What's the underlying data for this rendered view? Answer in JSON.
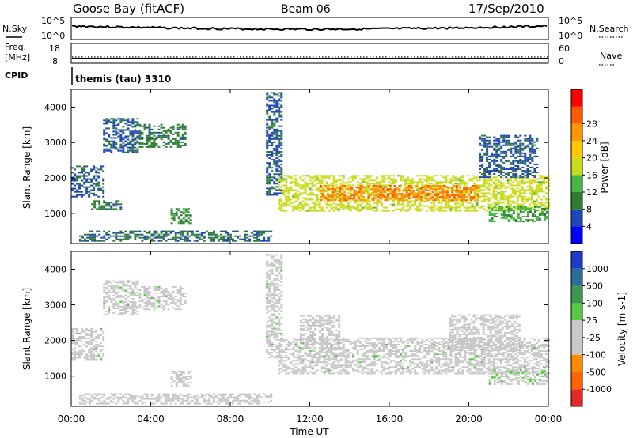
{
  "header": {
    "title": "Goose Bay (fitACF)",
    "beam": "Beam 06",
    "date": "17/Sep/2010"
  },
  "aux_panels": {
    "nsky_label": "N.Sky",
    "nsearch_label": "N.Search",
    "noise_ticks_left": [
      "10^5",
      "10^0"
    ],
    "noise_ticks_right": [
      "10^5",
      "10^0"
    ],
    "freq_label_1": "Freq.",
    "freq_label_2": "[MHz]",
    "freq_ticks": [
      "18",
      "8"
    ],
    "nave_label": "Nave",
    "nave_ticks": [
      "60",
      "0"
    ],
    "cpid_label": "CPID",
    "cpid_value": "themis (tau) 3310"
  },
  "x_axis": {
    "label": "Time UT",
    "ticks": [
      "00:00",
      "04:00",
      "08:00",
      "12:00",
      "16:00",
      "20:00",
      "00:00"
    ]
  },
  "colors": {
    "power": [
      "#0000ff",
      "#1e46b4",
      "#2e7d32",
      "#46b446",
      "#c8dc1e",
      "#ffc800",
      "#ff9600",
      "#ff5a00",
      "#ff0000"
    ],
    "velocity": [
      "#1e3cc8",
      "#2a6e96",
      "#3c9650",
      "#5ac846",
      "#c8c8c8",
      "#c8c8c8",
      "#ff8c00",
      "#ff6400",
      "#e62828"
    ]
  },
  "chart_data": [
    {
      "type": "heatmap",
      "name": "power",
      "xlabel": "Time UT",
      "ylabel": "Slant Range [km]",
      "xlim": [
        0,
        24
      ],
      "ylim": [
        150,
        4500
      ],
      "yticks": [
        1000,
        2000,
        3000,
        4000
      ],
      "colorbar_label": "Power [dB]",
      "colorbar_ticks": [
        "4",
        "8",
        "12",
        "16",
        "20",
        "24",
        "28"
      ],
      "colorbar_range": [
        0,
        30
      ],
      "regions": [
        {
          "t0": 0.0,
          "t1": 1.6,
          "r0": 1450,
          "r1": 2350,
          "val": 6
        },
        {
          "t0": 1.6,
          "t1": 3.4,
          "r0": 2700,
          "r1": 3650,
          "val": 6
        },
        {
          "t0": 3.4,
          "t1": 5.8,
          "r0": 2850,
          "r1": 3500,
          "val": 8
        },
        {
          "t0": 1.0,
          "t1": 2.5,
          "r0": 1100,
          "r1": 1350,
          "val": 8
        },
        {
          "t0": 5.0,
          "t1": 6.0,
          "r0": 700,
          "r1": 1150,
          "val": 9
        },
        {
          "t0": 0.4,
          "t1": 10.0,
          "r0": 200,
          "r1": 500,
          "val": 7
        },
        {
          "t0": 9.8,
          "t1": 10.6,
          "r0": 1500,
          "r1": 4400,
          "val": 6
        },
        {
          "t0": 10.4,
          "t1": 24.0,
          "r0": 1050,
          "r1": 2050,
          "val": 15
        },
        {
          "t0": 12.5,
          "t1": 20.5,
          "r0": 1350,
          "r1": 1800,
          "val": 23
        },
        {
          "t0": 21.0,
          "t1": 24.0,
          "r0": 750,
          "r1": 1200,
          "val": 11
        },
        {
          "t0": 20.5,
          "t1": 23.5,
          "r0": 2000,
          "r1": 3200,
          "val": 6
        }
      ]
    },
    {
      "type": "heatmap",
      "name": "velocity",
      "xlabel": "Time UT",
      "ylabel": "Slant Range [km]",
      "xlim": [
        0,
        24
      ],
      "ylim": [
        150,
        4500
      ],
      "yticks": [
        1000,
        2000,
        3000,
        4000
      ],
      "colorbar_label": "Velocity [m s-1]",
      "colorbar_ticks": [
        "1000",
        "500",
        "100",
        "25",
        "-25",
        "-100",
        "-500",
        "-1000"
      ],
      "colorbar_range": [
        -1200,
        1200
      ],
      "regions": [
        {
          "t0": 0.0,
          "t1": 1.6,
          "r0": 1450,
          "r1": 2350,
          "val": 0
        },
        {
          "t0": 1.6,
          "t1": 3.4,
          "r0": 2700,
          "r1": 3650,
          "val": 0
        },
        {
          "t0": 3.4,
          "t1": 5.8,
          "r0": 2850,
          "r1": 3500,
          "val": 0
        },
        {
          "t0": 5.0,
          "t1": 6.0,
          "r0": 700,
          "r1": 1150,
          "val": -80
        },
        {
          "t0": 0.4,
          "t1": 10.0,
          "r0": 200,
          "r1": 500,
          "val": -150
        },
        {
          "t0": 9.8,
          "t1": 10.6,
          "r0": 1500,
          "r1": 4400,
          "val": 0
        },
        {
          "t0": 10.4,
          "t1": 24.0,
          "r0": 1050,
          "r1": 2050,
          "val": 0
        },
        {
          "t0": 11.5,
          "t1": 13.5,
          "r0": 1900,
          "r1": 2700,
          "val": -200
        },
        {
          "t0": 19.0,
          "t1": 22.5,
          "r0": 1700,
          "r1": 2700,
          "val": -150
        },
        {
          "t0": 21.0,
          "t1": 24.0,
          "r0": 750,
          "r1": 1200,
          "val": 60
        }
      ]
    }
  ]
}
